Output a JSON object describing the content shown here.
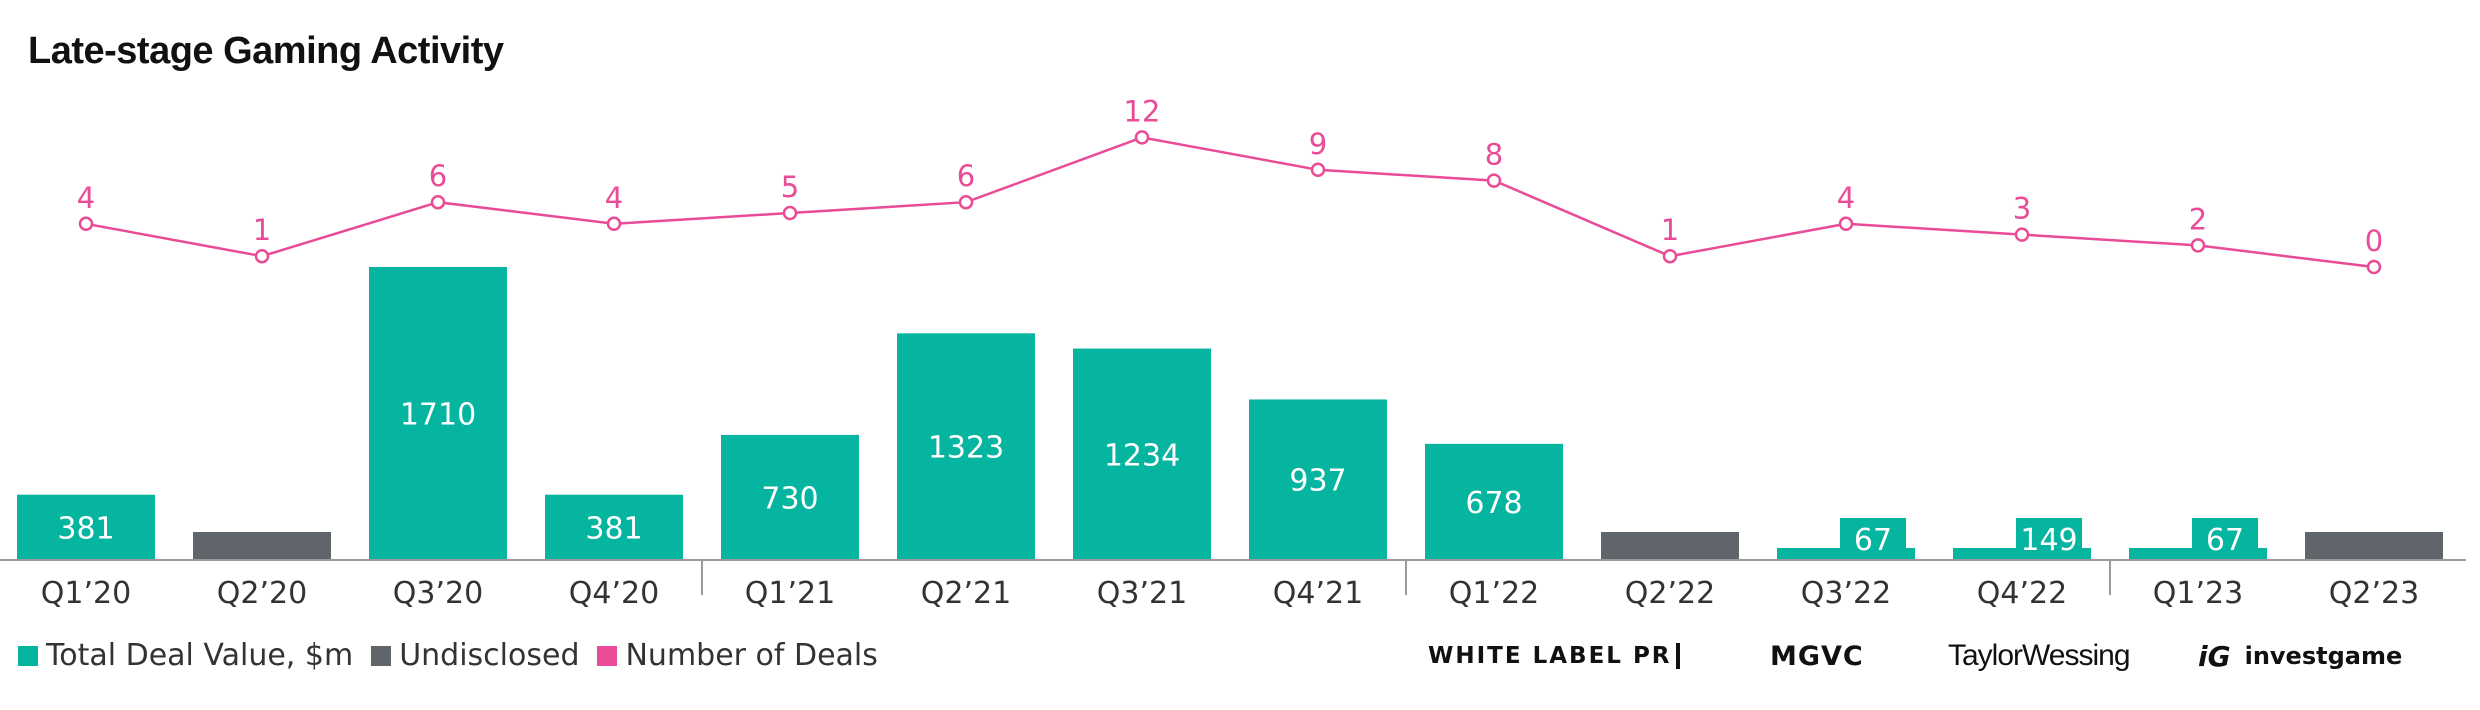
{
  "title": "Late-stage Gaming Activity",
  "colors": {
    "value": "#05b5a0",
    "undisclosed": "#5f656b",
    "deals": "#ea4b97"
  },
  "legend": [
    {
      "label": "Total Deal Value, $m",
      "color": "#05b5a0"
    },
    {
      "label": "Undisclosed",
      "color": "#5f656b"
    },
    {
      "label": "Number of Deals",
      "color": "#ea4b97"
    }
  ],
  "logos": {
    "wlpr": "WHITE LABEL PR",
    "mgvc": "MGVC",
    "tw": "TaylorWessing",
    "ig_mark": "iG",
    "ig": "investgame"
  },
  "chart_data": {
    "type": "bar",
    "categories": [
      "Q1’20",
      "Q2’20",
      "Q3’20",
      "Q4’20",
      "Q1’21",
      "Q2’21",
      "Q3’21",
      "Q4’21",
      "Q1’22",
      "Q2’22",
      "Q3’22",
      "Q4’22",
      "Q1’23",
      "Q2’23"
    ],
    "series": [
      {
        "name": "Total Deal Value, $m",
        "type": "bar",
        "values": [
          381,
          null,
          1710,
          381,
          730,
          1323,
          1234,
          937,
          678,
          null,
          67,
          149,
          67,
          null
        ]
      },
      {
        "name": "Undisclosed",
        "type": "bar",
        "values": [
          false,
          true,
          false,
          false,
          false,
          false,
          false,
          false,
          false,
          true,
          true,
          true,
          true,
          true
        ]
      },
      {
        "name": "Number of Deals",
        "type": "line",
        "values": [
          4,
          1,
          6,
          4,
          5,
          6,
          12,
          9,
          8,
          1,
          4,
          3,
          2,
          0
        ]
      }
    ],
    "xlabel": "",
    "ylabel": "",
    "grid": false,
    "legend_position": "bottom-left"
  }
}
